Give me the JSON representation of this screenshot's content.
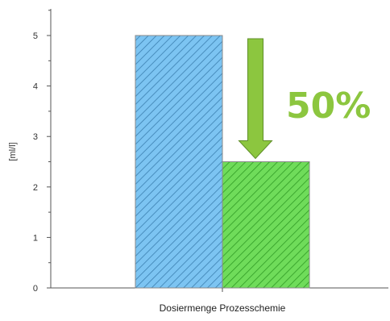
{
  "chart_data": {
    "type": "bar",
    "categories": [
      "Dosiermenge Prozesschemie"
    ],
    "series": [
      {
        "values": [
          5.0
        ],
        "color": "#7cc4f2",
        "hatch": "#3b7fb0"
      },
      {
        "values": [
          2.5
        ],
        "color": "#6fdc5a",
        "hatch": "#2f9a24"
      }
    ],
    "ylabel": "[ml/l]",
    "yticks": [
      0,
      1,
      2,
      3,
      4,
      5
    ],
    "ylim": [
      0,
      5.4
    ],
    "grid": false,
    "legend": "none",
    "annotation": {
      "text": "50%",
      "color": "#8cc63f",
      "arrow_color": "#8cc63f",
      "arrow_from": 5.0,
      "arrow_to": 2.5
    }
  }
}
